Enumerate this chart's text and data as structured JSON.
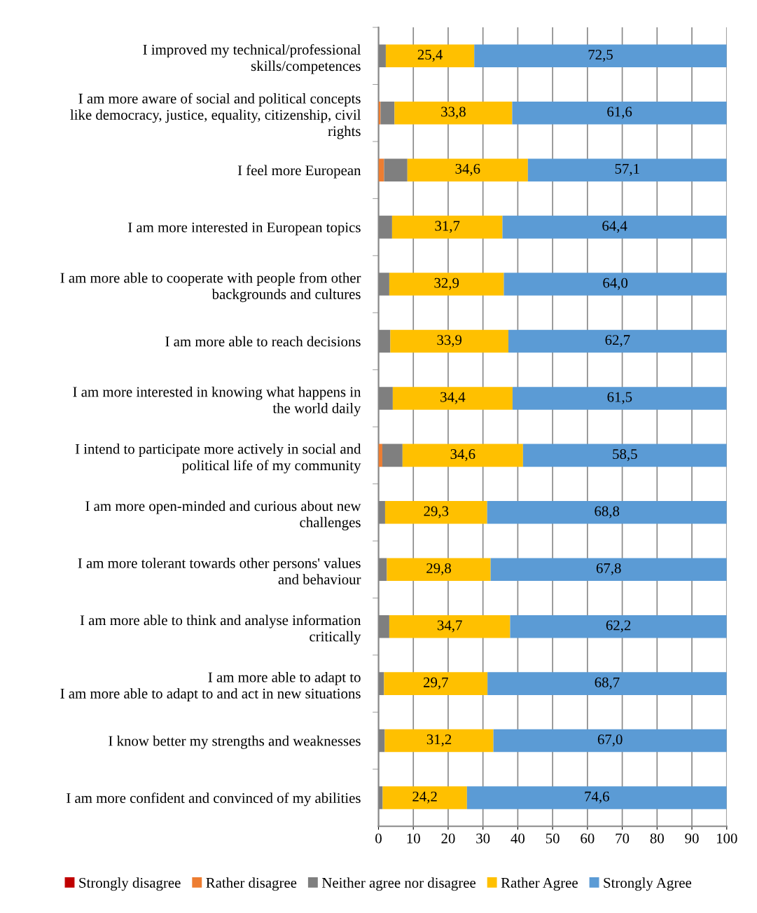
{
  "chart_data": {
    "type": "bar",
    "orientation": "horizontal",
    "stacked": true,
    "categories": [
      "I improved my technical/professional\nskills/competences",
      "I am more aware of social and political concepts\nlike democracy, justice, equality, citizenship, civil\nrights",
      "I feel more European",
      "I am more interested in European topics",
      "I am more able to cooperate with people from other\nbackgrounds and cultures",
      "I am more able to reach decisions",
      "I am more interested in knowing what happens in\nthe world daily",
      "I intend to participate more actively in social and\npolitical life of my community",
      "I am more open-minded and curious about new\nchallenges",
      "I am more tolerant towards other persons' values\nand behaviour",
      "I am more able to think and analyse information\ncritically",
      "I am more able to adapt to\nI am more able to adapt to and act in new situations",
      "I know better my strengths and weaknesses",
      "I am more confident and convinced of my abilities"
    ],
    "series": [
      {
        "name": "Strongly disagree",
        "color": "#c00000",
        "values": [
          0,
          0,
          0,
          0,
          0,
          0,
          0,
          0,
          0,
          0,
          0,
          0,
          0,
          0
        ]
      },
      {
        "name": "Rather disagree",
        "color": "#ed7d31",
        "values": [
          0,
          0.6,
          1.6,
          0,
          0,
          0,
          0,
          1.1,
          0,
          0,
          0,
          0,
          0,
          0
        ]
      },
      {
        "name": "Neither agree nor disagree",
        "color": "#7f7f7f",
        "values": [
          2.1,
          4.0,
          6.7,
          3.9,
          3.1,
          3.4,
          4.1,
          5.8,
          1.9,
          2.4,
          3.1,
          1.6,
          1.8,
          1.2
        ]
      },
      {
        "name": "Rather Agree",
        "color": "#ffc000",
        "values": [
          25.4,
          33.8,
          34.6,
          31.7,
          32.9,
          33.9,
          34.4,
          34.6,
          29.3,
          29.8,
          34.7,
          29.7,
          31.2,
          24.2
        ],
        "value_labels": [
          "25,4",
          "33,8",
          "34,6",
          "31,7",
          "32,9",
          "33,9",
          "34,4",
          "34,6",
          "29,3",
          "29,8",
          "34,7",
          "29,7",
          "31,2",
          "24,2"
        ]
      },
      {
        "name": "Strongly Agree",
        "color": "#5b9bd5",
        "values": [
          72.5,
          61.6,
          57.1,
          64.4,
          64.0,
          62.7,
          61.5,
          58.5,
          68.8,
          67.8,
          62.2,
          68.7,
          67.0,
          74.6
        ],
        "value_labels": [
          "72,5",
          "61,6",
          "57,1",
          "64,4",
          "64,0",
          "62,7",
          "61,5",
          "58,5",
          "68,8",
          "67,8",
          "62,2",
          "68,7",
          "67,0",
          "74,6"
        ]
      }
    ],
    "xlim": [
      0,
      100
    ],
    "xticks": [
      0,
      10,
      20,
      30,
      40,
      50,
      60,
      70,
      80,
      90,
      100
    ],
    "grid": "x",
    "legend": "bottom"
  }
}
